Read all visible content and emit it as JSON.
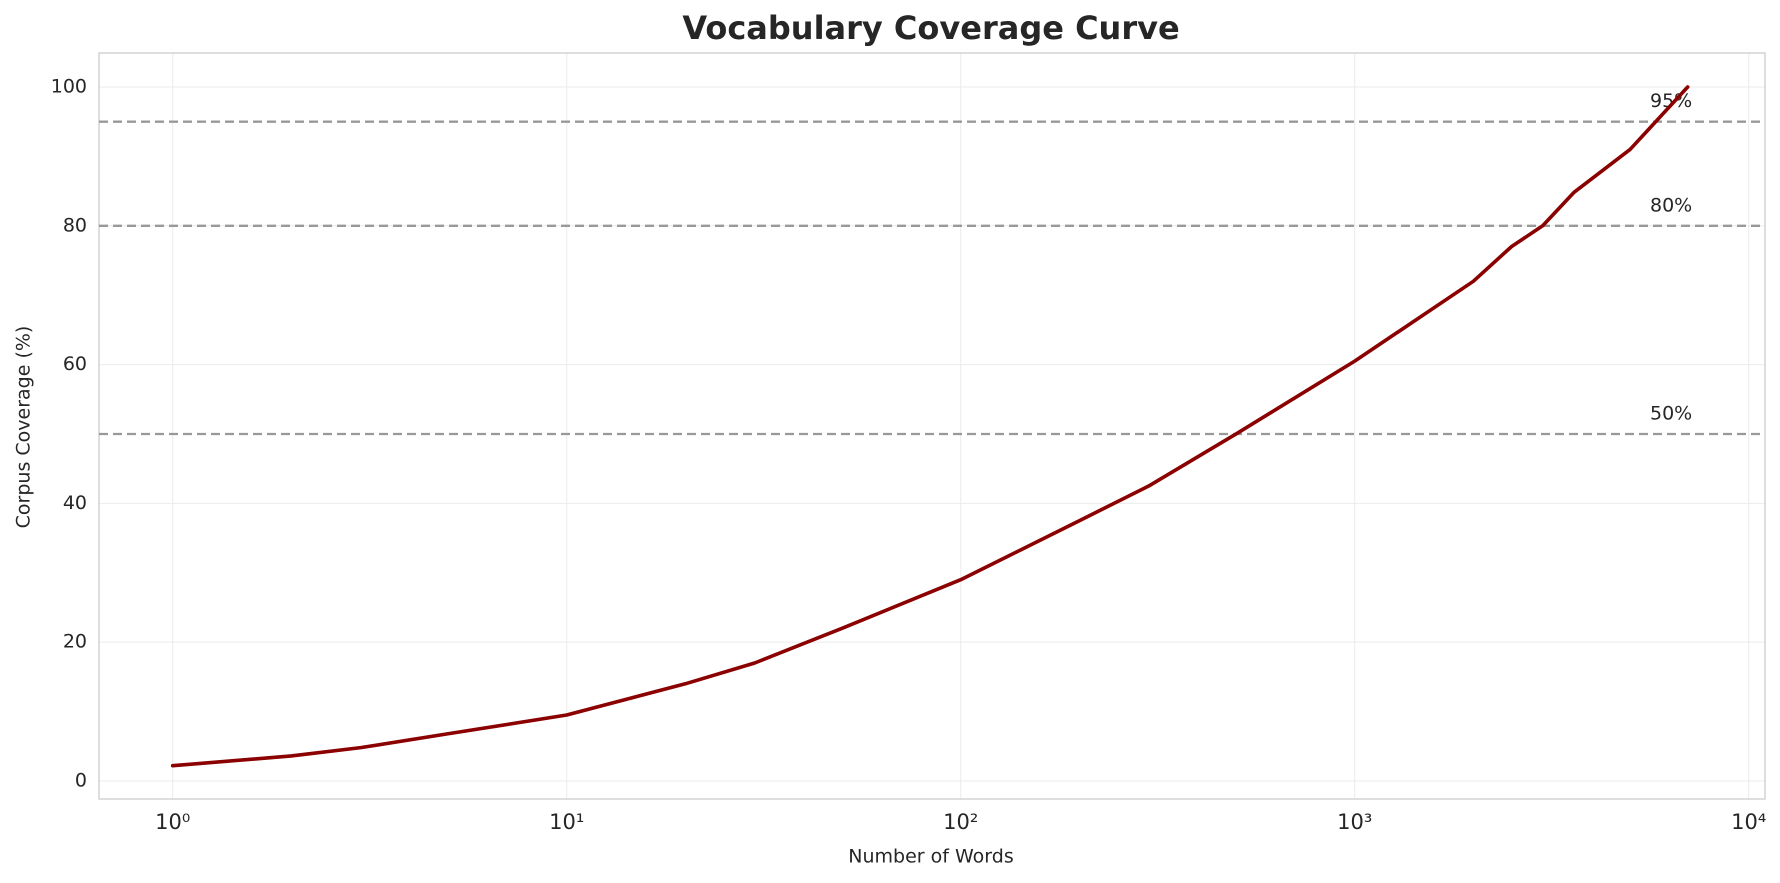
{
  "chart_data": {
    "type": "line",
    "title": "Vocabulary Coverage Curve",
    "xlabel": "Number of Words",
    "ylabel": "Corpus Coverage (%)",
    "x": [
      1,
      2,
      3,
      5,
      10,
      20,
      30,
      50,
      100,
      200,
      300,
      500,
      1000,
      2000,
      2500,
      3000,
      3600,
      5000,
      7000
    ],
    "values": [
      2.2,
      3.6,
      4.8,
      6.8,
      9.5,
      14,
      17,
      22,
      29,
      37.5,
      42.5,
      50,
      60.5,
      72,
      77,
      80,
      84.8,
      91,
      100
    ],
    "color": "#8b0000",
    "xscale": "log",
    "xlim": [
      0.65,
      11000
    ],
    "ylim": [
      -2.6,
      104.9
    ],
    "xticks": [
      {
        "value": 1,
        "label": "10⁰"
      },
      {
        "value": 10,
        "label": "10¹"
      },
      {
        "value": 100,
        "label": "10²"
      },
      {
        "value": 1000,
        "label": "10³"
      },
      {
        "value": 10000,
        "label": "10⁴"
      }
    ],
    "yticks": [
      0,
      20,
      40,
      60,
      80,
      100
    ],
    "grid": true,
    "hlines": [
      {
        "value": 95,
        "label": "95%"
      },
      {
        "value": 80,
        "label": "80%"
      },
      {
        "value": 50,
        "label": "50%"
      }
    ]
  }
}
